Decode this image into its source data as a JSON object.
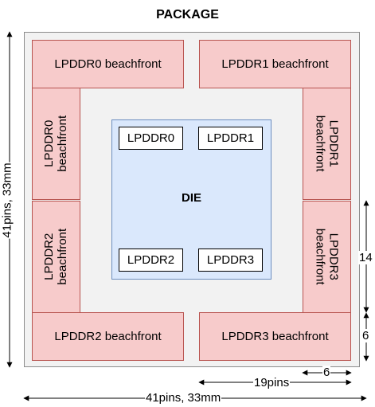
{
  "title": "PACKAGE",
  "beachfronts": {
    "top_left": "LPDDR0 beachfront",
    "top_right": "LPDDR1 beachfront",
    "left_upper": "LPDDR0 beachfront",
    "left_lower": "LPDDR2 beachfront",
    "right_upper": "LPDDR1 beachfront",
    "right_lower": "LPDDR3 beachfront",
    "bottom_left": "LPDDR2 beachfront",
    "bottom_right": "LPDDR3 beachfront"
  },
  "die": {
    "label": "DIE",
    "controllers": [
      "LPDDR0",
      "LPDDR1",
      "LPDDR2",
      "LPDDR3"
    ]
  },
  "dimensions": {
    "height_label": "41pins, 33mm",
    "width_label": "41pins, 33mm",
    "half_width_label": "19pins",
    "corner_width_label": "6",
    "side_height_label": "14",
    "corner_height_label": "6"
  },
  "colors": {
    "package_fill": "#f2f2f2",
    "beachfront_fill": "#f7cbcb",
    "beachfront_stroke": "#b85450",
    "die_fill": "#dae8fc",
    "die_stroke": "#6c8ebf"
  }
}
